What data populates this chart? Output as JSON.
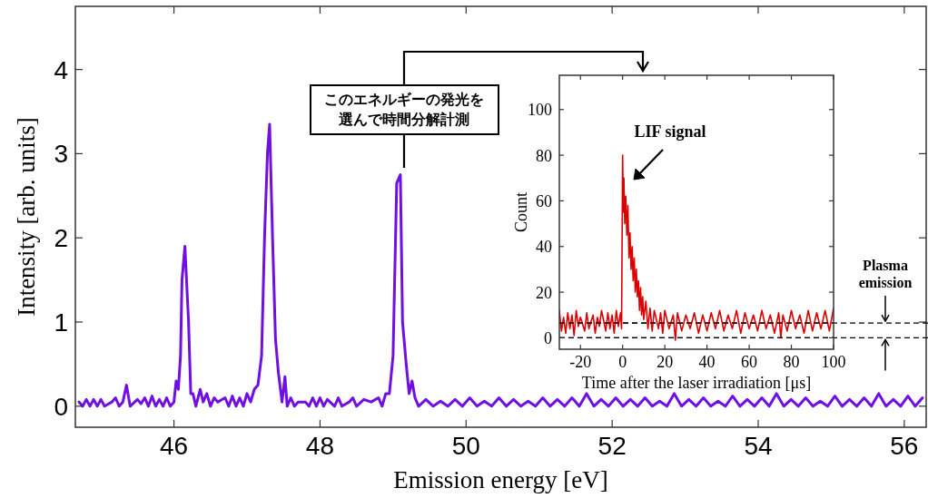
{
  "chart_data": [
    {
      "type": "line",
      "xlabel": "Emission energy [eV]",
      "ylabel": "Intensity [arb. units]",
      "xlim": [
        44.65,
        56.3
      ],
      "ylim": [
        -0.25,
        4.75
      ],
      "xticks": [
        46,
        48,
        50,
        52,
        54,
        56
      ],
      "yticks": [
        0,
        1,
        2,
        3,
        4
      ],
      "annotations": [
        "このエネルギーの発光を選んで時間分解計測"
      ],
      "series": [
        {
          "color": "#7010e0",
          "x": [
            44.7,
            44.75,
            44.8,
            44.85,
            44.9,
            44.95,
            45.0,
            45.05,
            45.15,
            45.2,
            45.25,
            45.3,
            45.35,
            45.4,
            45.5,
            45.55,
            45.6,
            45.65,
            45.7,
            45.75,
            45.8,
            45.85,
            45.9,
            45.95,
            46.0,
            46.03,
            46.06,
            46.09,
            46.11,
            46.15,
            46.2,
            46.23,
            46.26,
            46.3,
            46.36,
            46.4,
            46.45,
            46.5,
            46.55,
            46.6,
            46.7,
            46.75,
            46.8,
            46.85,
            46.9,
            46.95,
            47.0,
            47.05,
            47.1,
            47.15,
            47.2,
            47.24,
            47.28,
            47.31,
            47.35,
            47.39,
            47.43,
            47.48,
            47.52,
            47.55,
            47.6,
            47.65,
            47.7,
            47.8,
            47.85,
            47.9,
            47.95,
            48.0,
            48.05,
            48.1,
            48.2,
            48.25,
            48.3,
            48.4,
            48.45,
            48.5,
            48.6,
            48.7,
            48.8,
            48.85,
            48.9,
            48.95,
            49.0,
            49.05,
            49.1,
            49.13,
            49.18,
            49.22,
            49.26,
            49.3,
            49.35,
            49.45,
            49.55,
            49.65,
            49.75,
            49.85,
            49.95,
            50.05,
            50.15,
            50.25,
            50.35,
            50.45,
            50.55,
            50.65,
            50.75,
            50.85,
            50.95,
            51.05,
            51.15,
            51.25,
            51.35,
            51.45,
            51.55,
            51.65,
            51.75,
            51.85,
            51.95,
            52.05,
            52.15,
            52.25,
            52.35,
            52.45,
            52.55,
            52.65,
            52.75,
            52.85,
            52.95,
            53.05,
            53.15,
            53.25,
            53.35,
            53.45,
            53.55,
            53.65,
            53.75,
            53.85,
            53.95,
            54.05,
            54.15,
            54.25,
            54.35,
            54.45,
            54.55,
            54.65,
            54.75,
            54.85,
            54.95,
            55.05,
            55.15,
            55.25,
            55.35,
            55.45,
            55.55,
            55.65,
            55.75,
            55.85,
            55.95,
            56.05,
            56.15,
            56.25
          ],
          "values": [
            0.05,
            0.0,
            0.08,
            0.0,
            0.08,
            0.0,
            0.08,
            0.0,
            0.05,
            0.1,
            0.0,
            0.05,
            0.25,
            0.0,
            0.08,
            0.03,
            0.1,
            0.0,
            0.12,
            0.0,
            0.08,
            0.0,
            0.1,
            0.0,
            0.05,
            0.3,
            0.2,
            0.6,
            1.5,
            1.9,
            1.0,
            0.15,
            0.15,
            0.0,
            0.2,
            0.05,
            0.15,
            0.0,
            0.1,
            0.05,
            0.1,
            0.0,
            0.12,
            0.0,
            0.1,
            0.0,
            0.15,
            0.05,
            0.2,
            0.25,
            0.6,
            2.0,
            3.0,
            3.35,
            2.0,
            0.8,
            0.4,
            0.05,
            0.35,
            0.0,
            0.1,
            0.0,
            0.05,
            0.05,
            0.0,
            0.1,
            0.0,
            0.1,
            0.0,
            0.08,
            0.0,
            0.1,
            0.0,
            0.05,
            0.1,
            0.0,
            0.08,
            0.05,
            0.1,
            0.0,
            0.15,
            0.15,
            0.6,
            2.65,
            2.75,
            1.0,
            0.5,
            0.15,
            0.3,
            0.1,
            0.0,
            0.08,
            0.0,
            0.06,
            0.0,
            0.08,
            0.0,
            0.1,
            0.0,
            0.06,
            0.0,
            0.1,
            0.0,
            0.08,
            0.0,
            0.06,
            0.0,
            0.1,
            0.0,
            0.08,
            0.0,
            0.1,
            0.0,
            0.15,
            0.0,
            0.08,
            0.0,
            0.1,
            0.0,
            0.08,
            0.0,
            0.1,
            0.0,
            0.06,
            0.0,
            0.15,
            0.0,
            0.08,
            0.0,
            0.1,
            0.0,
            0.06,
            0.0,
            0.12,
            0.0,
            0.08,
            0.0,
            0.1,
            0.0,
            0.15,
            0.0,
            0.08,
            0.0,
            0.1,
            0.0,
            0.06,
            0.0,
            0.12,
            0.0,
            0.08,
            0.0,
            0.1,
            0.0,
            0.15,
            0.0,
            0.08,
            0.0,
            0.12,
            0.0,
            0.1
          ]
        }
      ]
    },
    {
      "type": "line",
      "xlabel": "Time after the laser irradiation [μs]",
      "ylabel": "Count",
      "xlim": [
        -30,
        100
      ],
      "ylim": [
        -5,
        115
      ],
      "xticks": [
        -20,
        0,
        20,
        40,
        60,
        80,
        100
      ],
      "yticks": [
        0,
        20,
        40,
        60,
        80,
        100
      ],
      "annotations": [
        "LIF signal",
        "Plasma emission"
      ],
      "ref_lines": [
        {
          "axis": "y",
          "value": 0,
          "color": "#000000",
          "line_style": "dashed"
        },
        {
          "axis": "y",
          "value": 6.5,
          "color": "#000000",
          "line_style": "dashed"
        }
      ],
      "series": [
        {
          "color": "#dd0000",
          "x": [
            -30,
            -29,
            -28,
            -27,
            -26,
            -25,
            -24,
            -23,
            -22,
            -21,
            -20,
            -18,
            -17,
            -16,
            -14,
            -13,
            -12,
            -11,
            -10,
            -8,
            -7,
            -6,
            -5,
            -4,
            -3,
            -2,
            -1,
            -0.5,
            0,
            0.3,
            0.6,
            1,
            1.5,
            2,
            2.5,
            3,
            3.5,
            4,
            4.5,
            5,
            5.5,
            6,
            6.5,
            7,
            7.5,
            8,
            8.5,
            9,
            9.5,
            10,
            11,
            12,
            13,
            14,
            15,
            17,
            18,
            19,
            20,
            22,
            24,
            25,
            26,
            28,
            30,
            32,
            34,
            36,
            38,
            40,
            42,
            44,
            46,
            48,
            50,
            52,
            54,
            56,
            58,
            60,
            62,
            64,
            66,
            68,
            70,
            72,
            74,
            75,
            76,
            78,
            80,
            82,
            84,
            86,
            88,
            90,
            92,
            94,
            96,
            98,
            100
          ],
          "values": [
            12,
            3,
            9,
            2,
            11,
            4,
            10,
            1,
            12,
            5,
            9,
            3,
            11,
            4,
            10,
            2,
            9,
            5,
            12,
            3,
            11,
            4,
            10,
            2,
            12,
            5,
            11,
            4,
            80,
            55,
            70,
            50,
            62,
            45,
            58,
            35,
            46,
            30,
            40,
            25,
            35,
            20,
            30,
            18,
            25,
            12,
            22,
            10,
            18,
            8,
            16,
            4,
            13,
            3,
            12,
            4,
            11,
            2,
            12,
            4,
            10,
            -1,
            11,
            3,
            10,
            4,
            11,
            2,
            10,
            3,
            11,
            4,
            12,
            3,
            10,
            4,
            12,
            2,
            11,
            4,
            10,
            3,
            12,
            4,
            10,
            2,
            11,
            0,
            10,
            3,
            12,
            4,
            10,
            2,
            12,
            3,
            11,
            4,
            12,
            3,
            13
          ]
        }
      ]
    }
  ]
}
